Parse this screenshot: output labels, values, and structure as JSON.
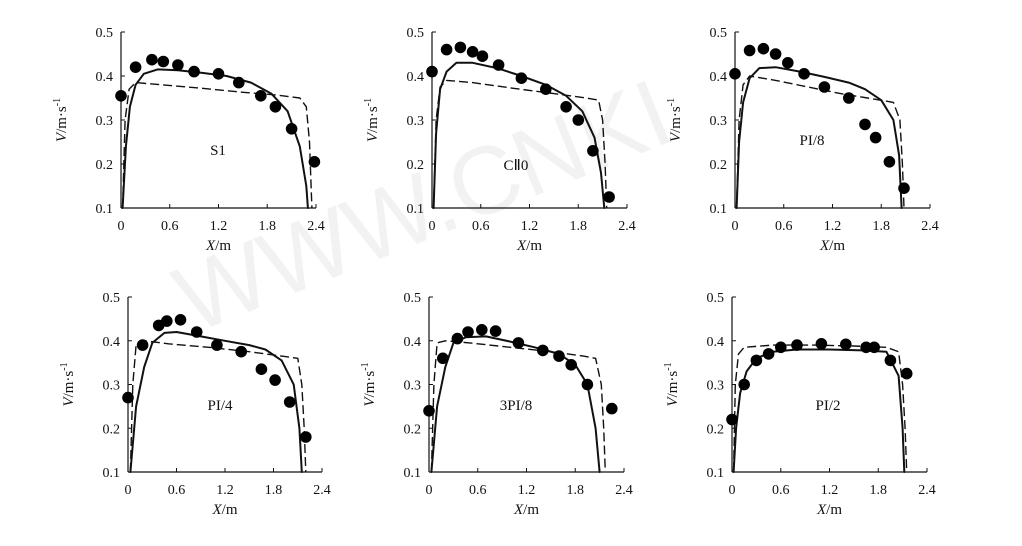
{
  "watermark": "WWW.CNKI",
  "chart_data": [
    {
      "type": "line",
      "label": "S1",
      "xlabel_var": "X",
      "xlabel_unit": "/m",
      "ylabel_var": "V",
      "ylabel_unit": "/m·s",
      "ylabel_exp": "-1",
      "xlim": [
        0,
        2.4
      ],
      "ylim": [
        0.1,
        0.5
      ],
      "y_start": 0.1,
      "xticks": [
        0,
        0.6,
        1.2,
        1.8,
        2.4
      ],
      "yticks": [
        0.1,
        0.2,
        0.3,
        0.4,
        0.5
      ],
      "xtick_labels": [
        "0",
        "0.6",
        "1.2",
        "1.8",
        "2.4"
      ],
      "ytick_labels": [
        "0.1",
        "0.2",
        "0.3",
        "0.4",
        "0.5"
      ],
      "measured": [
        [
          0.0,
          0.355
        ],
        [
          0.18,
          0.42
        ],
        [
          0.38,
          0.437
        ],
        [
          0.52,
          0.433
        ],
        [
          0.7,
          0.425
        ],
        [
          0.9,
          0.41
        ],
        [
          1.2,
          0.405
        ],
        [
          1.45,
          0.385
        ],
        [
          1.72,
          0.355
        ],
        [
          1.9,
          0.33
        ],
        [
          2.1,
          0.28
        ],
        [
          2.38,
          0.205
        ]
      ],
      "solid": [
        [
          0.02,
          0.1
        ],
        [
          0.06,
          0.24
        ],
        [
          0.11,
          0.33
        ],
        [
          0.18,
          0.38
        ],
        [
          0.28,
          0.405
        ],
        [
          0.45,
          0.415
        ],
        [
          0.7,
          0.413
        ],
        [
          1.0,
          0.407
        ],
        [
          1.3,
          0.4
        ],
        [
          1.6,
          0.385
        ],
        [
          1.85,
          0.36
        ],
        [
          2.05,
          0.32
        ],
        [
          2.2,
          0.24
        ],
        [
          2.28,
          0.15
        ],
        [
          2.3,
          0.1
        ]
      ],
      "dashed": [
        [
          0.02,
          0.1
        ],
        [
          0.05,
          0.3
        ],
        [
          0.1,
          0.37
        ],
        [
          0.18,
          0.385
        ],
        [
          0.5,
          0.38
        ],
        [
          1.0,
          0.372
        ],
        [
          1.5,
          0.363
        ],
        [
          1.9,
          0.357
        ],
        [
          2.2,
          0.35
        ],
        [
          2.28,
          0.33
        ],
        [
          2.32,
          0.25
        ],
        [
          2.35,
          0.1
        ]
      ]
    },
    {
      "type": "line",
      "label": "CⅡ0",
      "xlabel_var": "X",
      "xlabel_unit": "/m",
      "ylabel_var": "V",
      "ylabel_unit": "/m·s",
      "ylabel_exp": "-1",
      "xlim": [
        0,
        2.4
      ],
      "ylim": [
        0.1,
        0.5
      ],
      "y_start": 0.1,
      "xticks": [
        0,
        0.6,
        1.2,
        1.8,
        2.4
      ],
      "yticks": [
        0.1,
        0.2,
        0.3,
        0.4,
        0.5
      ],
      "xtick_labels": [
        "0",
        "0.6",
        "1.2",
        "1.8",
        "2.4"
      ],
      "ytick_labels": [
        "0.1",
        "0.2",
        "0.3",
        "0.4",
        "0.5"
      ],
      "measured": [
        [
          0.0,
          0.41
        ],
        [
          0.18,
          0.46
        ],
        [
          0.35,
          0.465
        ],
        [
          0.5,
          0.455
        ],
        [
          0.62,
          0.445
        ],
        [
          0.82,
          0.425
        ],
        [
          1.1,
          0.395
        ],
        [
          1.4,
          0.37
        ],
        [
          1.65,
          0.33
        ],
        [
          1.8,
          0.3
        ],
        [
          1.98,
          0.23
        ],
        [
          2.18,
          0.125
        ]
      ],
      "solid": [
        [
          0.02,
          0.1
        ],
        [
          0.05,
          0.27
        ],
        [
          0.1,
          0.37
        ],
        [
          0.18,
          0.41
        ],
        [
          0.3,
          0.43
        ],
        [
          0.5,
          0.43
        ],
        [
          0.8,
          0.418
        ],
        [
          1.1,
          0.4
        ],
        [
          1.4,
          0.38
        ],
        [
          1.65,
          0.355
        ],
        [
          1.85,
          0.32
        ],
        [
          2.0,
          0.26
        ],
        [
          2.08,
          0.18
        ],
        [
          2.12,
          0.1
        ]
      ],
      "dashed": [
        [
          0.02,
          0.1
        ],
        [
          0.05,
          0.3
        ],
        [
          0.1,
          0.375
        ],
        [
          0.18,
          0.39
        ],
        [
          0.5,
          0.385
        ],
        [
          1.0,
          0.372
        ],
        [
          1.5,
          0.36
        ],
        [
          1.9,
          0.35
        ],
        [
          2.05,
          0.345
        ],
        [
          2.1,
          0.3
        ],
        [
          2.13,
          0.2
        ],
        [
          2.15,
          0.1
        ]
      ]
    },
    {
      "type": "line",
      "label": "PI/8",
      "xlabel_var": "X",
      "xlabel_unit": "/m",
      "ylabel_var": "V",
      "ylabel_unit": "/m·s",
      "ylabel_exp": "-1",
      "xlim": [
        0,
        2.4
      ],
      "ylim": [
        0.1,
        0.5
      ],
      "y_start": 0.1,
      "xticks": [
        0,
        0.6,
        1.2,
        1.8,
        2.4
      ],
      "yticks": [
        0.1,
        0.2,
        0.3,
        0.4,
        0.5
      ],
      "xtick_labels": [
        "0",
        "0.6",
        "1.2",
        "1.8",
        "2.4"
      ],
      "ytick_labels": [
        "0.1",
        "0.2",
        "0.3",
        "0.4",
        "0.5"
      ],
      "measured": [
        [
          0.0,
          0.405
        ],
        [
          0.18,
          0.458
        ],
        [
          0.35,
          0.462
        ],
        [
          0.5,
          0.45
        ],
        [
          0.65,
          0.43
        ],
        [
          0.85,
          0.405
        ],
        [
          1.1,
          0.375
        ],
        [
          1.4,
          0.35
        ],
        [
          1.6,
          0.29
        ],
        [
          1.73,
          0.26
        ],
        [
          1.9,
          0.205
        ],
        [
          2.08,
          0.145
        ]
      ],
      "solid": [
        [
          0.02,
          0.1
        ],
        [
          0.05,
          0.25
        ],
        [
          0.1,
          0.34
        ],
        [
          0.18,
          0.395
        ],
        [
          0.3,
          0.418
        ],
        [
          0.5,
          0.42
        ],
        [
          0.8,
          0.41
        ],
        [
          1.1,
          0.398
        ],
        [
          1.4,
          0.385
        ],
        [
          1.6,
          0.37
        ],
        [
          1.8,
          0.345
        ],
        [
          1.95,
          0.3
        ],
        [
          2.02,
          0.22
        ],
        [
          2.05,
          0.1
        ]
      ],
      "dashed": [
        [
          0.02,
          0.1
        ],
        [
          0.05,
          0.3
        ],
        [
          0.1,
          0.38
        ],
        [
          0.18,
          0.4
        ],
        [
          0.5,
          0.39
        ],
        [
          0.9,
          0.375
        ],
        [
          1.3,
          0.36
        ],
        [
          1.7,
          0.348
        ],
        [
          1.95,
          0.34
        ],
        [
          2.03,
          0.3
        ],
        [
          2.06,
          0.2
        ],
        [
          2.08,
          0.1
        ]
      ]
    },
    {
      "type": "line",
      "label": "PI/4",
      "xlabel_var": "X",
      "xlabel_unit": "/m",
      "ylabel_var": "V",
      "ylabel_unit": "/m·s",
      "ylabel_exp": "-1",
      "xlim": [
        0,
        2.4
      ],
      "ylim": [
        0.1,
        0.5
      ],
      "y_start": 0.1,
      "xticks": [
        0,
        0.6,
        1.2,
        1.8,
        2.4
      ],
      "yticks": [
        0.1,
        0.2,
        0.3,
        0.4,
        0.5
      ],
      "xtick_labels": [
        "0",
        "0.6",
        "1.2",
        "1.8",
        "2.4"
      ],
      "ytick_labels": [
        "0.1",
        "0.2",
        "0.3",
        "0.4",
        "0.5"
      ],
      "measured": [
        [
          0.0,
          0.27
        ],
        [
          0.18,
          0.39
        ],
        [
          0.38,
          0.435
        ],
        [
          0.48,
          0.445
        ],
        [
          0.65,
          0.448
        ],
        [
          0.85,
          0.42
        ],
        [
          1.1,
          0.39
        ],
        [
          1.4,
          0.375
        ],
        [
          1.65,
          0.335
        ],
        [
          1.82,
          0.31
        ],
        [
          2.0,
          0.26
        ],
        [
          2.2,
          0.18
        ]
      ],
      "solid": [
        [
          0.03,
          0.1
        ],
        [
          0.1,
          0.25
        ],
        [
          0.2,
          0.34
        ],
        [
          0.3,
          0.395
        ],
        [
          0.45,
          0.418
        ],
        [
          0.6,
          0.42
        ],
        [
          0.9,
          0.41
        ],
        [
          1.2,
          0.4
        ],
        [
          1.5,
          0.39
        ],
        [
          1.7,
          0.38
        ],
        [
          1.9,
          0.355
        ],
        [
          2.05,
          0.3
        ],
        [
          2.12,
          0.2
        ],
        [
          2.15,
          0.1
        ]
      ],
      "dashed": [
        [
          0.03,
          0.1
        ],
        [
          0.06,
          0.3
        ],
        [
          0.1,
          0.39
        ],
        [
          0.2,
          0.4
        ],
        [
          0.5,
          0.393
        ],
        [
          1.0,
          0.385
        ],
        [
          1.5,
          0.375
        ],
        [
          1.9,
          0.365
        ],
        [
          2.1,
          0.36
        ],
        [
          2.15,
          0.3
        ],
        [
          2.18,
          0.2
        ],
        [
          2.2,
          0.1
        ]
      ]
    },
    {
      "type": "line",
      "label": "3PI/8",
      "xlabel_var": "X",
      "xlabel_unit": "/m",
      "ylabel_var": "V",
      "ylabel_unit": "/m·s",
      "ylabel_exp": "-1",
      "xlim": [
        0,
        2.4
      ],
      "ylim": [
        0.1,
        0.5
      ],
      "y_start": 0.1,
      "xticks": [
        0,
        0.6,
        1.2,
        1.8,
        2.4
      ],
      "yticks": [
        0.1,
        0.2,
        0.3,
        0.4,
        0.5
      ],
      "xtick_labels": [
        "0",
        "0.6",
        "1.2",
        "1.8",
        "2.4"
      ],
      "ytick_labels": [
        "0.1",
        "0.2",
        "0.3",
        "0.4",
        "0.5"
      ],
      "measured": [
        [
          0.0,
          0.24
        ],
        [
          0.17,
          0.36
        ],
        [
          0.35,
          0.405
        ],
        [
          0.48,
          0.42
        ],
        [
          0.65,
          0.425
        ],
        [
          0.82,
          0.422
        ],
        [
          1.1,
          0.395
        ],
        [
          1.4,
          0.378
        ],
        [
          1.6,
          0.365
        ],
        [
          1.75,
          0.345
        ],
        [
          1.95,
          0.3
        ],
        [
          2.25,
          0.245
        ]
      ],
      "solid": [
        [
          0.03,
          0.1
        ],
        [
          0.1,
          0.25
        ],
        [
          0.2,
          0.34
        ],
        [
          0.3,
          0.395
        ],
        [
          0.45,
          0.408
        ],
        [
          0.7,
          0.41
        ],
        [
          1.0,
          0.398
        ],
        [
          1.3,
          0.385
        ],
        [
          1.6,
          0.37
        ],
        [
          1.8,
          0.345
        ],
        [
          1.95,
          0.3
        ],
        [
          2.05,
          0.2
        ],
        [
          2.1,
          0.1
        ]
      ],
      "dashed": [
        [
          0.03,
          0.1
        ],
        [
          0.06,
          0.3
        ],
        [
          0.1,
          0.395
        ],
        [
          0.2,
          0.4
        ],
        [
          0.5,
          0.395
        ],
        [
          1.0,
          0.385
        ],
        [
          1.5,
          0.375
        ],
        [
          1.9,
          0.365
        ],
        [
          2.05,
          0.36
        ],
        [
          2.12,
          0.3
        ],
        [
          2.15,
          0.2
        ],
        [
          2.17,
          0.1
        ]
      ]
    },
    {
      "type": "line",
      "label": "PI/2",
      "xlabel_var": "X",
      "xlabel_unit": "/m",
      "ylabel_var": "V",
      "ylabel_unit": "/m·s",
      "ylabel_exp": "-1",
      "xlim": [
        0,
        2.4
      ],
      "ylim": [
        0.1,
        0.5
      ],
      "y_start": 0.1,
      "xticks": [
        0,
        0.6,
        1.2,
        1.8,
        2.4
      ],
      "yticks": [
        0.1,
        0.2,
        0.3,
        0.4,
        0.5
      ],
      "xtick_labels": [
        "0",
        "0.6",
        "1.2",
        "1.8",
        "2.4"
      ],
      "ytick_labels": [
        "0.1",
        "0.2",
        "0.3",
        "0.4",
        "0.5"
      ],
      "measured": [
        [
          0.0,
          0.22
        ],
        [
          0.15,
          0.3
        ],
        [
          0.3,
          0.355
        ],
        [
          0.45,
          0.37
        ],
        [
          0.6,
          0.385
        ],
        [
          0.8,
          0.39
        ],
        [
          1.1,
          0.393
        ],
        [
          1.4,
          0.392
        ],
        [
          1.65,
          0.385
        ],
        [
          1.75,
          0.385
        ],
        [
          1.95,
          0.355
        ],
        [
          2.15,
          0.325
        ]
      ],
      "solid": [
        [
          0.02,
          0.1
        ],
        [
          0.05,
          0.2
        ],
        [
          0.1,
          0.28
        ],
        [
          0.18,
          0.33
        ],
        [
          0.3,
          0.36
        ],
        [
          0.5,
          0.375
        ],
        [
          0.8,
          0.38
        ],
        [
          1.2,
          0.38
        ],
        [
          1.6,
          0.378
        ],
        [
          1.9,
          0.375
        ],
        [
          2.05,
          0.32
        ],
        [
          2.1,
          0.2
        ],
        [
          2.12,
          0.1
        ]
      ],
      "dashed": [
        [
          0.02,
          0.1
        ],
        [
          0.04,
          0.3
        ],
        [
          0.08,
          0.37
        ],
        [
          0.15,
          0.385
        ],
        [
          0.5,
          0.39
        ],
        [
          1.0,
          0.39
        ],
        [
          1.5,
          0.388
        ],
        [
          1.9,
          0.385
        ],
        [
          2.05,
          0.375
        ],
        [
          2.1,
          0.3
        ],
        [
          2.13,
          0.2
        ],
        [
          2.15,
          0.1
        ]
      ]
    }
  ]
}
